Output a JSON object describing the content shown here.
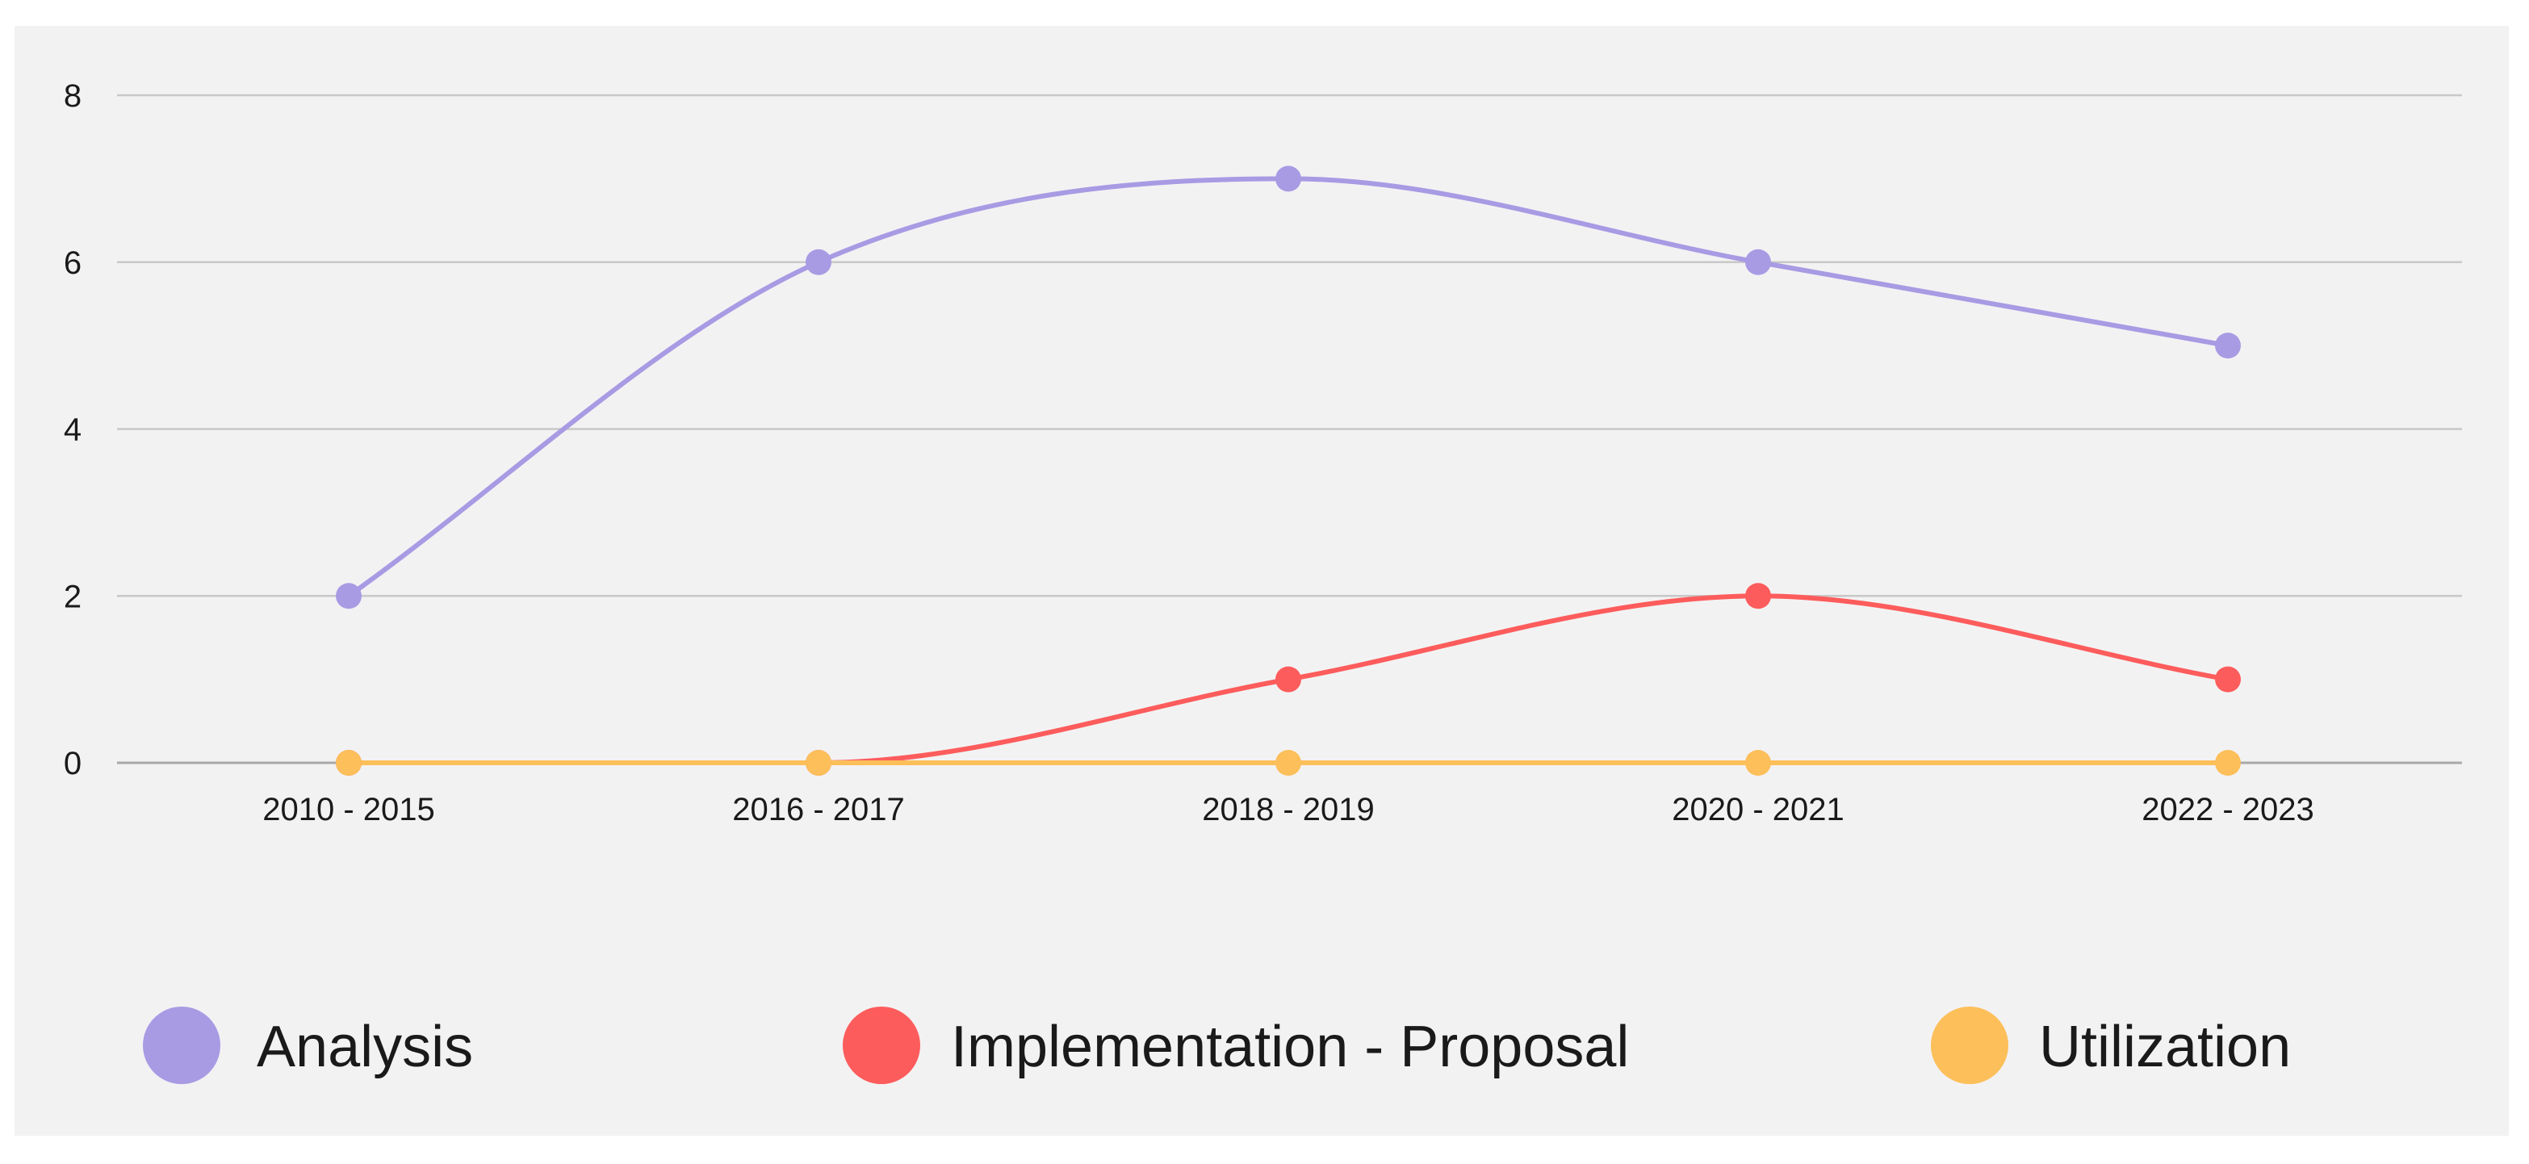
{
  "chart_data": {
    "type": "line",
    "title": "",
    "xlabel": "",
    "ylabel": "",
    "categories": [
      "2010 - 2015",
      "2016 - 2017",
      "2018 - 2019",
      "2020 - 2021",
      "2022 - 2023"
    ],
    "ylim": [
      0,
      8
    ],
    "yticks": [
      0,
      2,
      4,
      6,
      8
    ],
    "grid": true,
    "smooth": true,
    "legend_position": "bottom",
    "series": [
      {
        "name": "Analysis",
        "color": "#a89be3",
        "values": [
          2,
          6,
          7,
          6,
          5
        ]
      },
      {
        "name": "Implementation - Proposal",
        "color": "#fd5c5c",
        "values": [
          0,
          0,
          1,
          2,
          1
        ]
      },
      {
        "name": "Utilization",
        "color": "#fcbf5a",
        "values": [
          0,
          0,
          0,
          0,
          0
        ]
      }
    ],
    "colors": {
      "panel_background": "#f3f2f3",
      "grid_line": "#c8c8c8",
      "axis_line": "#a8a8a8",
      "text": "#1a1a1a"
    }
  }
}
